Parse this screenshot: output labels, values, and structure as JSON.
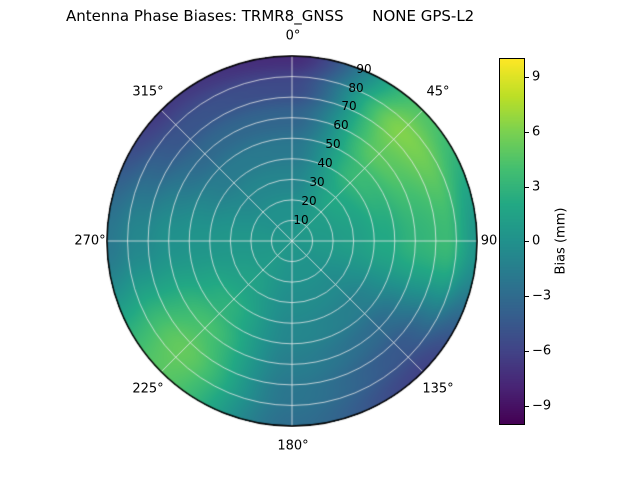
{
  "chart_data": {
    "type": "heatmap",
    "projection": "polar",
    "title": "Antenna Phase Biases: TRMR8_GNSS      NONE GPS-L2",
    "clim": [
      -10,
      10
    ],
    "grid": true,
    "colormap": {
      "name": "viridis",
      "stops": [
        "#440154",
        "#482475",
        "#414487",
        "#355f8d",
        "#2a788e",
        "#21918c",
        "#22a884",
        "#44bf70",
        "#7ad151",
        "#bddf26",
        "#fde725"
      ]
    },
    "colorbar": {
      "label": "Bias (mm)",
      "tick_values": [
        9,
        6,
        3,
        0,
        -3,
        -6,
        -9
      ],
      "tick_labels": [
        "9",
        "6",
        "3",
        "0",
        "−3",
        "−6",
        "−9"
      ],
      "position": "right"
    },
    "angular_tick_labels": [
      "0°",
      "45°",
      "90",
      "135°",
      "180°",
      "225°",
      "270°",
      "315°"
    ],
    "radial_tick_labels": [
      "10",
      "20",
      "30",
      "40",
      "50",
      "60",
      "70",
      "80",
      "90"
    ],
    "radial_max": 90,
    "bias_grid": {
      "units": "mm",
      "azimuth_deg": [
        0,
        45,
        90,
        135,
        180,
        225,
        270,
        315,
        360
      ],
      "zenith_deg": [
        0,
        15,
        30,
        45,
        60,
        75,
        90
      ],
      "values": [
        [
          0.5,
          0.0,
          -1.0,
          -2.0,
          -3.5,
          -5.5,
          -7.5
        ],
        [
          0.5,
          1.0,
          2.0,
          3.5,
          5.0,
          6.2,
          4.5
        ],
        [
          0.5,
          0.8,
          1.2,
          2.0,
          3.0,
          3.5,
          0.5
        ],
        [
          0.5,
          0.2,
          -0.5,
          -1.5,
          -3.0,
          -4.5,
          -6.0
        ],
        [
          0.5,
          0.2,
          -0.3,
          -0.8,
          -1.5,
          -2.2,
          -2.8
        ],
        [
          0.5,
          0.8,
          1.5,
          2.8,
          4.2,
          5.2,
          4.8
        ],
        [
          0.5,
          0.5,
          0.5,
          0.3,
          0.0,
          -0.8,
          -2.0
        ],
        [
          0.5,
          0.0,
          -0.8,
          -1.8,
          -3.2,
          -4.8,
          -6.5
        ],
        [
          0.5,
          0.0,
          -1.0,
          -2.0,
          -3.5,
          -5.5,
          -7.5
        ]
      ]
    }
  }
}
